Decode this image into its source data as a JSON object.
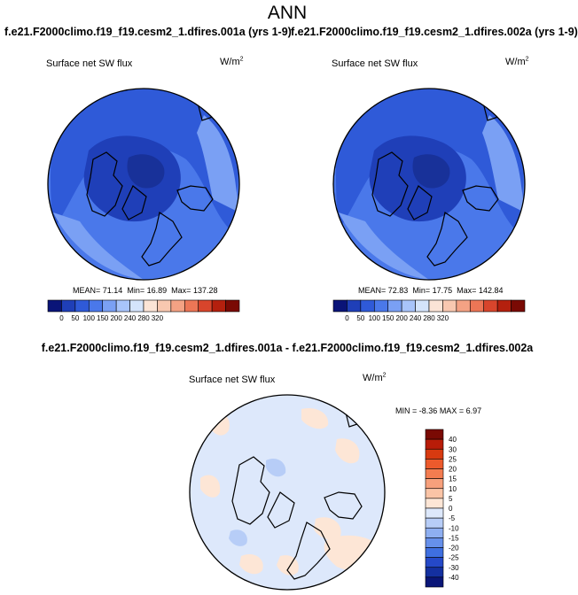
{
  "figure": {
    "title": "ANN",
    "case1_title": "f.e21.F2000climo.f19_f19.cesm2_1.dfires.001a (yrs 1-9)",
    "case2_title": "f.e21.F2000climo.f19_f19.cesm2_1.dfires.002a (yrs 1-9)",
    "diff_title": "f.e21.F2000climo.f19_f19.cesm2_1.dfires.001a - f.e21.F2000climo.f19_f19.cesm2_1.dfires.002a"
  },
  "chart_data": [
    {
      "type": "heatmap",
      "projection": "north-polar-stereographic",
      "variable": "Surface net SW flux",
      "units_base": "W/m",
      "units_exp": "2",
      "stats": {
        "mean_label": "MEAN=",
        "mean": "71.14",
        "min_label": "Min=",
        "min": "16.89",
        "max_label": "Max=",
        "max": "137.28"
      },
      "colorbar": {
        "levels": [
          "0",
          "50",
          "100",
          "150",
          "200",
          "240",
          "280",
          "320"
        ],
        "colors": [
          "#0a1478",
          "#1f3fb8",
          "#2f5ad8",
          "#4a78ea",
          "#7aa0f4",
          "#a8c4fa",
          "#d4e4fb",
          "#fbe4d6",
          "#f8c8b0",
          "#f4a284",
          "#ec7656",
          "#d8452c",
          "#b4200e",
          "#7a0a04"
        ]
      }
    },
    {
      "type": "heatmap",
      "projection": "north-polar-stereographic",
      "variable": "Surface net SW flux",
      "units_base": "W/m",
      "units_exp": "2",
      "stats": {
        "mean_label": "MEAN=",
        "mean": "72.83",
        "min_label": "Min=",
        "min": "17.75",
        "max_label": "Max=",
        "max": "142.84"
      },
      "colorbar": {
        "levels": [
          "0",
          "50",
          "100",
          "150",
          "200",
          "240",
          "280",
          "320"
        ],
        "colors": [
          "#0a1478",
          "#1f3fb8",
          "#2f5ad8",
          "#4a78ea",
          "#7aa0f4",
          "#a8c4fa",
          "#d4e4fb",
          "#fbe4d6",
          "#f8c8b0",
          "#f4a284",
          "#ec7656",
          "#d8452c",
          "#b4200e",
          "#7a0a04"
        ]
      }
    },
    {
      "type": "heatmap",
      "projection": "north-polar-stereographic",
      "variable": "Surface net SW flux",
      "units_base": "W/m",
      "units_exp": "2",
      "stats": {
        "min_label": "MIN =",
        "min": "-8.36",
        "max_label": "MAX =",
        "max": "6.97"
      },
      "colorbar": {
        "levels": [
          "40",
          "30",
          "25",
          "20",
          "15",
          "10",
          "5",
          "0",
          "-5",
          "-10",
          "-15",
          "-20",
          "-25",
          "-30",
          "-40"
        ],
        "colors": [
          "#7a0a04",
          "#b81c08",
          "#d83a10",
          "#ec5a2c",
          "#f37c50",
          "#f7a07c",
          "#fac4a6",
          "#fde6d6",
          "#dde8fb",
          "#b7cdf7",
          "#8eaff1",
          "#6690ea",
          "#3f6fe0",
          "#2549c8",
          "#1430a0",
          "#0a1678"
        ]
      }
    }
  ]
}
